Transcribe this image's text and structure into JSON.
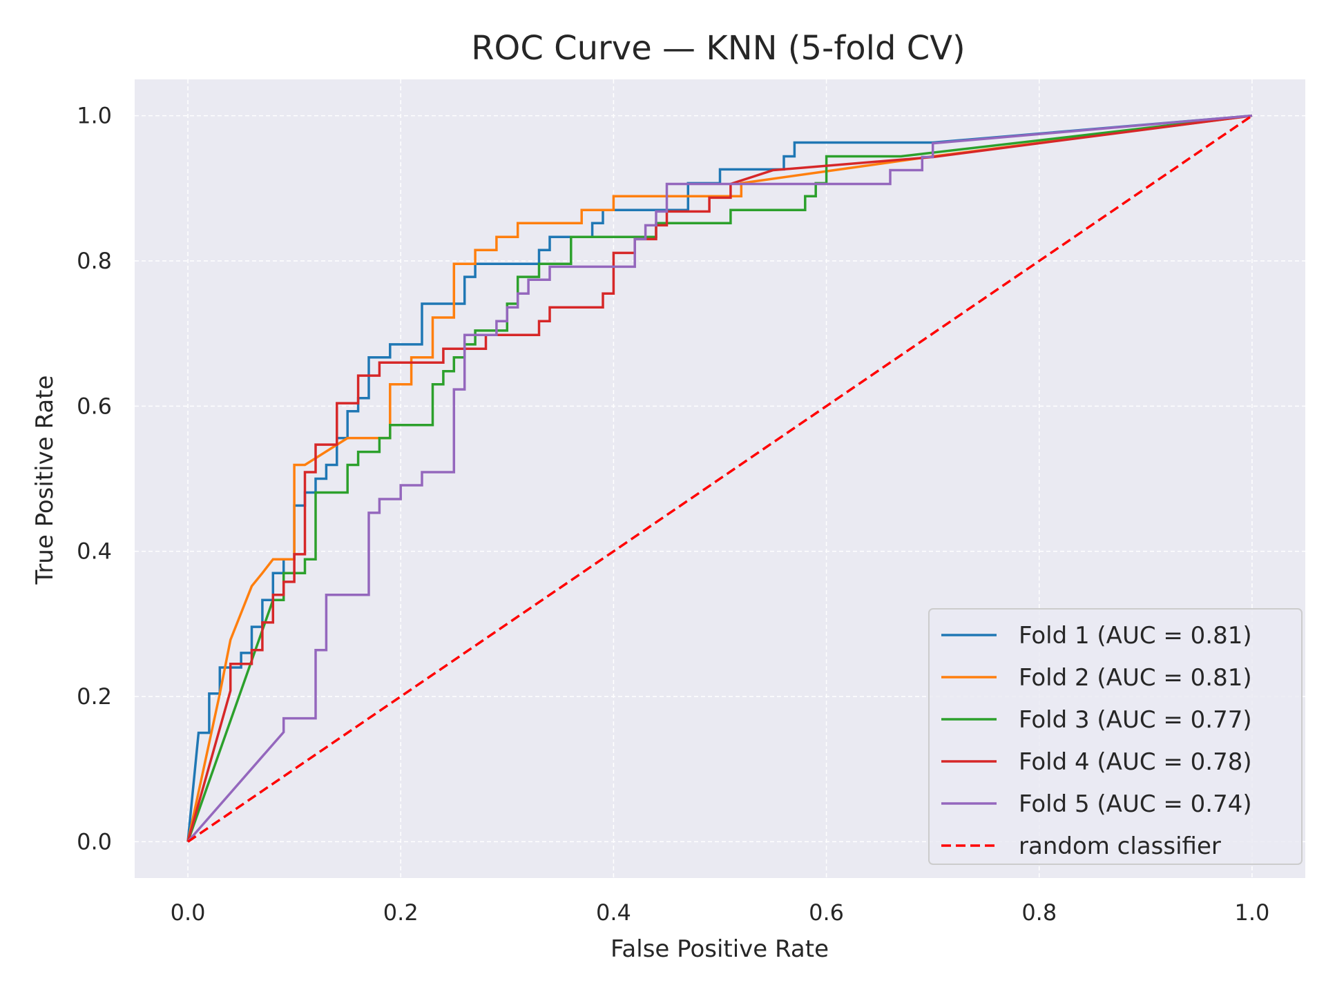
{
  "chart_data": {
    "type": "line",
    "title": "ROC Curve — KNN (5-fold CV)",
    "xlabel": "False Positive Rate",
    "ylabel": "True Positive Rate",
    "xlim": [
      -0.05,
      1.05
    ],
    "ylim": [
      -0.05,
      1.05
    ],
    "xticks": [
      "0.0",
      "0.2",
      "0.4",
      "0.6",
      "0.8",
      "1.0"
    ],
    "yticks": [
      "0.0",
      "0.2",
      "0.4",
      "0.6",
      "0.8",
      "1.0"
    ],
    "grid": true,
    "legend_position": "lower-right",
    "series": [
      {
        "name": "Fold 1 (AUC = 0.81)",
        "color": "#1f77b4",
        "x": [
          0,
          0.01,
          0.01,
          0.02,
          0.02,
          0.03,
          0.03,
          0.05,
          0.05,
          0.06,
          0.06,
          0.07,
          0.07,
          0.08,
          0.08,
          0.09,
          0.09,
          0.1,
          0.1,
          0.11,
          0.11,
          0.12,
          0.12,
          0.13,
          0.13,
          0.14,
          0.14,
          0.15,
          0.15,
          0.16,
          0.16,
          0.17,
          0.17,
          0.19,
          0.19,
          0.22,
          0.22,
          0.26,
          0.26,
          0.27,
          0.27,
          0.33,
          0.33,
          0.34,
          0.34,
          0.38,
          0.38,
          0.39,
          0.39,
          0.4,
          0.4,
          0.47,
          0.47,
          0.5,
          0.5,
          0.56,
          0.56,
          0.57,
          0.57,
          0.7,
          1.0
        ],
        "y": [
          0,
          0.15,
          0.15,
          0.15,
          0.204,
          0.204,
          0.24,
          0.24,
          0.26,
          0.26,
          0.296,
          0.296,
          0.333,
          0.333,
          0.37,
          0.37,
          0.389,
          0.389,
          0.463,
          0.463,
          0.481,
          0.481,
          0.5,
          0.5,
          0.519,
          0.519,
          0.556,
          0.556,
          0.593,
          0.593,
          0.611,
          0.611,
          0.667,
          0.667,
          0.685,
          0.685,
          0.741,
          0.741,
          0.778,
          0.778,
          0.796,
          0.796,
          0.815,
          0.815,
          0.833,
          0.833,
          0.852,
          0.852,
          0.87,
          0.87,
          0.87,
          0.87,
          0.907,
          0.907,
          0.926,
          0.926,
          0.944,
          0.944,
          0.963,
          0.963,
          1.0
        ]
      },
      {
        "name": "Fold 2 (AUC = 0.81)",
        "color": "#ff7f0e",
        "x": [
          0,
          0.03,
          0.03,
          0.04,
          0.04,
          0.05,
          0.05,
          0.06,
          0.06,
          0.07,
          0.07,
          0.08,
          0.08,
          0.1,
          0.1,
          0.11,
          0.11,
          0.15,
          0.15,
          0.19,
          0.19,
          0.21,
          0.21,
          0.23,
          0.23,
          0.25,
          0.25,
          0.27,
          0.27,
          0.29,
          0.29,
          0.31,
          0.31,
          0.37,
          0.37,
          0.4,
          0.4,
          0.52,
          0.52,
          0.7,
          1.0
        ],
        "y": [
          0,
          0.204,
          0.204,
          0.278,
          0.278,
          0.315,
          0.315,
          0.352,
          0.352,
          0.37,
          0.37,
          0.389,
          0.389,
          0.389,
          0.519,
          0.519,
          0.519,
          0.556,
          0.556,
          0.556,
          0.63,
          0.63,
          0.667,
          0.667,
          0.722,
          0.722,
          0.796,
          0.796,
          0.815,
          0.815,
          0.833,
          0.833,
          0.852,
          0.852,
          0.87,
          0.87,
          0.889,
          0.889,
          0.907,
          0.944,
          1.0
        ]
      },
      {
        "name": "Fold 3 (AUC = 0.77)",
        "color": "#2ca02c",
        "x": [
          0,
          0.08,
          0.09,
          0.09,
          0.11,
          0.11,
          0.12,
          0.12,
          0.15,
          0.15,
          0.16,
          0.16,
          0.18,
          0.18,
          0.19,
          0.19,
          0.23,
          0.23,
          0.24,
          0.24,
          0.25,
          0.25,
          0.26,
          0.26,
          0.27,
          0.27,
          0.3,
          0.3,
          0.31,
          0.31,
          0.33,
          0.33,
          0.36,
          0.36,
          0.44,
          0.44,
          0.51,
          0.51,
          0.58,
          0.58,
          0.59,
          0.59,
          0.6,
          0.6,
          0.67,
          1.0
        ],
        "y": [
          0,
          0.333,
          0.333,
          0.37,
          0.37,
          0.389,
          0.389,
          0.481,
          0.481,
          0.519,
          0.519,
          0.537,
          0.537,
          0.556,
          0.556,
          0.574,
          0.574,
          0.63,
          0.63,
          0.648,
          0.648,
          0.667,
          0.667,
          0.685,
          0.685,
          0.704,
          0.704,
          0.741,
          0.741,
          0.778,
          0.778,
          0.796,
          0.796,
          0.833,
          0.833,
          0.852,
          0.852,
          0.87,
          0.87,
          0.889,
          0.889,
          0.907,
          0.907,
          0.944,
          0.944,
          1.0
        ]
      },
      {
        "name": "Fold 4 (AUC = 0.78)",
        "color": "#d62728",
        "x": [
          0,
          0.04,
          0.04,
          0.05,
          0.05,
          0.06,
          0.06,
          0.07,
          0.07,
          0.08,
          0.08,
          0.09,
          0.09,
          0.1,
          0.1,
          0.11,
          0.11,
          0.12,
          0.12,
          0.14,
          0.14,
          0.16,
          0.16,
          0.18,
          0.18,
          0.24,
          0.24,
          0.28,
          0.28,
          0.33,
          0.33,
          0.34,
          0.34,
          0.39,
          0.39,
          0.4,
          0.4,
          0.42,
          0.42,
          0.44,
          0.44,
          0.45,
          0.45,
          0.47,
          0.47,
          0.49,
          0.49,
          0.51,
          0.51,
          0.55,
          0.7,
          1.0
        ],
        "y": [
          0,
          0.208,
          0.245,
          0.245,
          0.245,
          0.245,
          0.264,
          0.264,
          0.302,
          0.302,
          0.34,
          0.34,
          0.358,
          0.358,
          0.396,
          0.396,
          0.509,
          0.509,
          0.547,
          0.547,
          0.604,
          0.604,
          0.642,
          0.642,
          0.66,
          0.66,
          0.679,
          0.679,
          0.698,
          0.698,
          0.717,
          0.717,
          0.736,
          0.736,
          0.755,
          0.755,
          0.811,
          0.811,
          0.83,
          0.83,
          0.849,
          0.849,
          0.868,
          0.868,
          0.868,
          0.868,
          0.887,
          0.887,
          0.906,
          0.925,
          0.943,
          1.0
        ]
      },
      {
        "name": "Fold 5 (AUC = 0.74)",
        "color": "#9467bd",
        "x": [
          0,
          0.09,
          0.09,
          0.12,
          0.12,
          0.13,
          0.13,
          0.17,
          0.17,
          0.18,
          0.18,
          0.2,
          0.2,
          0.22,
          0.22,
          0.25,
          0.25,
          0.26,
          0.26,
          0.29,
          0.29,
          0.3,
          0.3,
          0.31,
          0.31,
          0.32,
          0.32,
          0.34,
          0.34,
          0.36,
          0.36,
          0.42,
          0.42,
          0.43,
          0.43,
          0.44,
          0.44,
          0.45,
          0.45,
          0.66,
          0.66,
          0.69,
          0.69,
          0.7,
          0.7,
          1.0
        ],
        "y": [
          0,
          0.151,
          0.17,
          0.17,
          0.264,
          0.264,
          0.34,
          0.34,
          0.453,
          0.453,
          0.472,
          0.472,
          0.491,
          0.491,
          0.509,
          0.509,
          0.623,
          0.623,
          0.698,
          0.698,
          0.717,
          0.717,
          0.736,
          0.736,
          0.755,
          0.755,
          0.774,
          0.774,
          0.792,
          0.792,
          0.792,
          0.792,
          0.83,
          0.83,
          0.849,
          0.849,
          0.868,
          0.868,
          0.906,
          0.906,
          0.925,
          0.925,
          0.943,
          0.943,
          0.962,
          1.0
        ]
      }
    ],
    "reference_line": {
      "name": "random classifier",
      "color": "#ff0000",
      "x": [
        0,
        1
      ],
      "y": [
        0,
        1
      ]
    }
  }
}
